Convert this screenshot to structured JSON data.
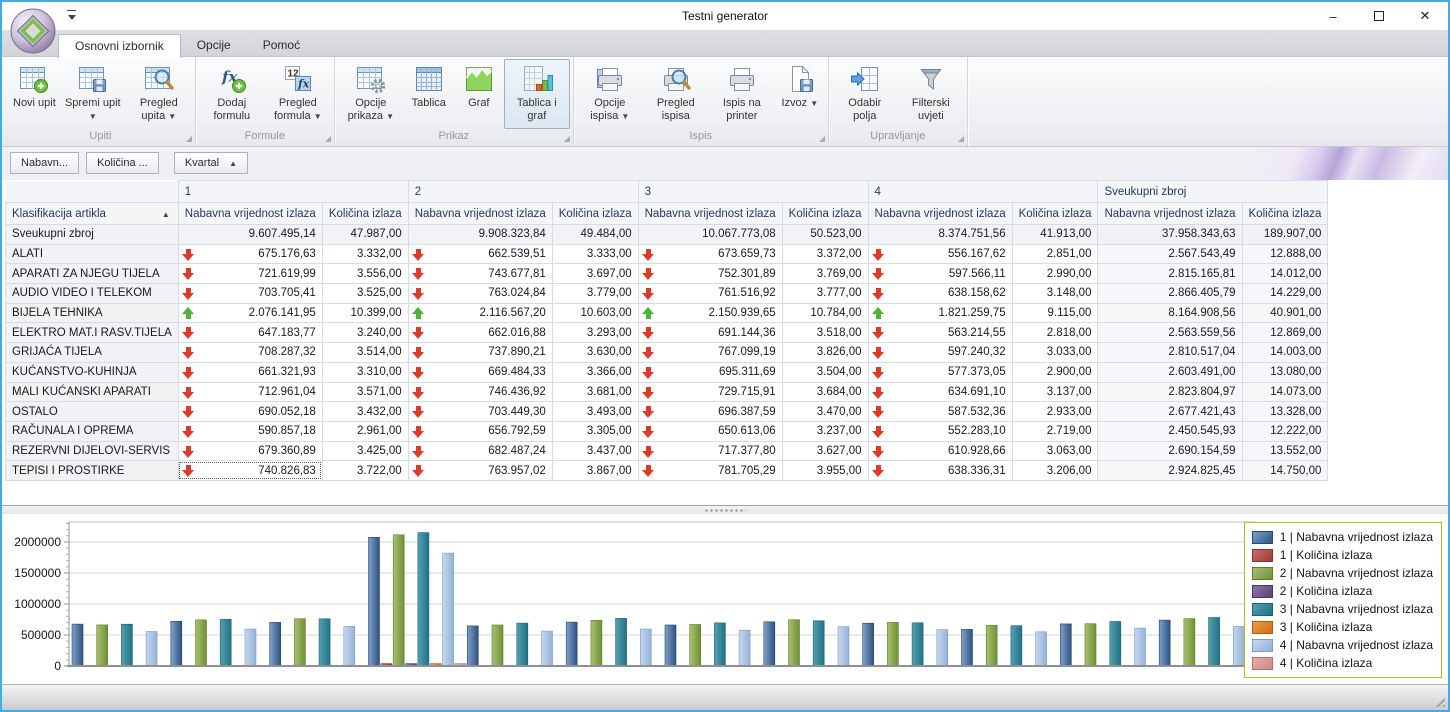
{
  "window": {
    "title": "Testni generator",
    "controls": {
      "minimize": "–",
      "close": "✕"
    }
  },
  "ribbon": {
    "tabs": [
      {
        "label": "Osnovni izbornik",
        "active": true
      },
      {
        "label": "Opcije",
        "active": false
      },
      {
        "label": "Pomoć",
        "active": false
      }
    ],
    "groups": [
      {
        "label": "Upiti",
        "buttons": [
          {
            "label": "Novi upit",
            "icon": "table-new-icon",
            "dropdown": false,
            "selected": false
          },
          {
            "label": "Spremi upit",
            "icon": "table-save-icon",
            "dropdown": true,
            "selected": false
          },
          {
            "label": "Pregled upita",
            "icon": "table-search-icon",
            "dropdown": true,
            "selected": false
          }
        ]
      },
      {
        "label": "Formule",
        "buttons": [
          {
            "label": "Dodaj formulu",
            "icon": "formula-add-icon",
            "dropdown": false,
            "selected": false
          },
          {
            "label": "Pregled formula",
            "icon": "formula-preview-icon",
            "dropdown": true,
            "selected": false
          }
        ]
      },
      {
        "label": "Prikaz",
        "buttons": [
          {
            "label": "Opcije prikaza",
            "icon": "table-options-icon",
            "dropdown": true,
            "selected": false
          },
          {
            "label": "Tablica",
            "icon": "table-icon",
            "dropdown": false,
            "selected": false
          },
          {
            "label": "Graf",
            "icon": "chart-icon",
            "dropdown": false,
            "selected": false
          },
          {
            "label": "Tablica i graf",
            "icon": "table-chart-icon",
            "dropdown": false,
            "selected": true
          }
        ]
      },
      {
        "label": "Ispis",
        "buttons": [
          {
            "label": "Opcije ispisa",
            "icon": "print-options-icon",
            "dropdown": true,
            "selected": false
          },
          {
            "label": "Pregled ispisa",
            "icon": "print-preview-icon",
            "dropdown": false,
            "selected": false
          },
          {
            "label": "Ispis na printer",
            "icon": "print-icon",
            "dropdown": false,
            "selected": false
          },
          {
            "label": "Izvoz",
            "icon": "export-icon",
            "dropdown": true,
            "selected": false
          }
        ]
      },
      {
        "label": "Upravljanje",
        "buttons": [
          {
            "label": "Odabir polja",
            "icon": "field-chooser-icon",
            "dropdown": false,
            "selected": false
          },
          {
            "label": "Filterski uvjeti",
            "icon": "filter-icon",
            "dropdown": false,
            "selected": false
          }
        ]
      }
    ]
  },
  "pivot": {
    "data_fields": [
      "Nabavn...",
      "Količina ..."
    ],
    "column_field": {
      "label": "Kvartal",
      "sort": "▲"
    },
    "row_field": {
      "label": "Klasifikacija artikla",
      "sort": "▲"
    },
    "column_groups": [
      "1",
      "2",
      "3",
      "4",
      "Sveukupni zbroj"
    ],
    "measure_headers": [
      "Nabavna vrijednost izlaza",
      "Količina izlaza"
    ],
    "rows": [
      {
        "label": "Sveukupni zbroj",
        "total": true,
        "trend": null,
        "cells": [
          "9.607.495,14",
          "47.987,00",
          "9.908.323,84",
          "49.484,00",
          "10.067.773,08",
          "50.523,00",
          "8.374.751,56",
          "41.913,00",
          "37.958.343,63",
          "189.907,00"
        ]
      },
      {
        "label": "ALATI",
        "total": false,
        "trend": "down",
        "cells": [
          "675.176,63",
          "3.332,00",
          "662.539,51",
          "3.333,00",
          "673.659,73",
          "3.372,00",
          "556.167,62",
          "2.851,00",
          "2.567.543,49",
          "12.888,00"
        ]
      },
      {
        "label": "APARATI ZA NJEGU TIJELA",
        "total": false,
        "trend": "down",
        "cells": [
          "721.619,99",
          "3.556,00",
          "743.677,81",
          "3.697,00",
          "752.301,89",
          "3.769,00",
          "597.566,11",
          "2.990,00",
          "2.815.165,81",
          "14.012,00"
        ]
      },
      {
        "label": "AUDIO VIDEO I TELEKOM",
        "total": false,
        "trend": "down",
        "cells": [
          "703.705,41",
          "3.525,00",
          "763.024,84",
          "3.779,00",
          "761.516,92",
          "3.777,00",
          "638.158,62",
          "3.148,00",
          "2.866.405,79",
          "14.229,00"
        ]
      },
      {
        "label": "BIJELA TEHNIKA",
        "total": false,
        "trend": "up",
        "cells": [
          "2.076.141,95",
          "10.399,00",
          "2.116.567,20",
          "10.603,00",
          "2.150.939,65",
          "10.784,00",
          "1.821.259,75",
          "9.115,00",
          "8.164.908,56",
          "40.901,00"
        ]
      },
      {
        "label": "ELEKTRO MAT.I RASV.TIJELA",
        "total": false,
        "trend": "down",
        "cells": [
          "647.183,77",
          "3.240,00",
          "662.016,88",
          "3.293,00",
          "691.144,36",
          "3.518,00",
          "563.214,55",
          "2.818,00",
          "2.563.559,56",
          "12.869,00"
        ]
      },
      {
        "label": "GRIJAĆA TIJELA",
        "total": false,
        "trend": "down",
        "cells": [
          "708.287,32",
          "3.514,00",
          "737.890,21",
          "3.630,00",
          "767.099,19",
          "3.826,00",
          "597.240,32",
          "3.033,00",
          "2.810.517,04",
          "14.003,00"
        ]
      },
      {
        "label": "KUĆANSTVO-KUHINJA",
        "total": false,
        "trend": "down",
        "cells": [
          "661.321,93",
          "3.310,00",
          "669.484,33",
          "3.366,00",
          "695.311,69",
          "3.504,00",
          "577.373,05",
          "2.900,00",
          "2.603.491,00",
          "13.080,00"
        ]
      },
      {
        "label": "MALI KUĆANSKI APARATI",
        "total": false,
        "trend": "down",
        "cells": [
          "712.961,04",
          "3.571,00",
          "746.436,92",
          "3.681,00",
          "729.715,91",
          "3.684,00",
          "634.691,10",
          "3.137,00",
          "2.823.804,97",
          "14.073,00"
        ]
      },
      {
        "label": "OSTALO",
        "total": false,
        "trend": "down",
        "cells": [
          "690.052,18",
          "3.432,00",
          "703.449,30",
          "3.493,00",
          "696.387,59",
          "3.470,00",
          "587.532,36",
          "2.933,00",
          "2.677.421,43",
          "13.328,00"
        ]
      },
      {
        "label": "RAČUNALA I OPREMA",
        "total": false,
        "trend": "down",
        "cells": [
          "590.857,18",
          "2.961,00",
          "656.792,59",
          "3.305,00",
          "650.613,06",
          "3.237,00",
          "552.283,10",
          "2.719,00",
          "2.450.545,93",
          "12.222,00"
        ]
      },
      {
        "label": "REZERVNI DIJELOVI-SERVIS",
        "total": false,
        "trend": "down",
        "cells": [
          "679.360,89",
          "3.425,00",
          "682.487,24",
          "3.437,00",
          "717.377,80",
          "3.627,00",
          "610.928,66",
          "3.063,00",
          "2.690.154,59",
          "13.552,00"
        ]
      },
      {
        "label": "TEPISI I PROSTIRKE",
        "total": false,
        "trend": "down",
        "cells": [
          "740.826,83",
          "3.722,00",
          "763.957,02",
          "3.867,00",
          "781.705,29",
          "3.955,00",
          "638.336,31",
          "3.206,00",
          "2.924.825,45",
          "14.750,00"
        ]
      }
    ],
    "focused_cell": {
      "row": 12,
      "col": 0
    }
  },
  "chart_data": {
    "type": "bar",
    "title": "",
    "xlabel": "",
    "ylabel": "",
    "ylim": [
      0,
      2350000
    ],
    "y_ticks": [
      0,
      500000,
      1000000,
      1500000,
      2000000
    ],
    "grid": true,
    "legend_position": "right",
    "categories": [
      "ALATI",
      "APARATI ZA NJEGU TIJELA",
      "AUDIO VIDEO I TELEKOM",
      "BIJELA TEHNIKA",
      "ELEKTRO MAT.I RASV.TIJELA",
      "GRIJAĆA TIJELA",
      "KUĆANSTVO-KUHINJA",
      "MALI KUĆANSKI APARATI",
      "OSTALO",
      "RAČUNALA I OPREMA",
      "REZERVNI DIJELOVI-SERVIS",
      "TEPISI I PROSTIRKE"
    ],
    "series": [
      {
        "name": "1 | Nabavna vrijednost izlaza",
        "color_light": "#7FA1C9",
        "color_dark": "#2E5380",
        "color_border": "#27486F",
        "values": [
          675176.63,
          721619.99,
          703705.41,
          2076141.95,
          647183.77,
          708287.32,
          661321.93,
          712961.04,
          690052.18,
          590857.18,
          679360.89,
          740826.83
        ]
      },
      {
        "name": "1 | Količina izlaza",
        "color_light": "#C76E68",
        "color_dark": "#9E3936",
        "color_border": "#8C312E",
        "values": [
          3332,
          3556,
          3525,
          10399,
          3240,
          3514,
          3310,
          3571,
          3432,
          2961,
          3425,
          3722
        ]
      },
      {
        "name": "2 | Nabavna vrijednost izlaza",
        "color_light": "#A9C170",
        "color_dark": "#6F9134",
        "color_border": "#5F7E2B",
        "values": [
          662539.51,
          743677.81,
          763024.84,
          2116567.2,
          662016.88,
          737890.21,
          669484.33,
          746436.92,
          703449.3,
          656792.59,
          682487.24,
          763957.02
        ]
      },
      {
        "name": "2 | Količina izlaza",
        "color_light": "#8C77A8",
        "color_dark": "#584272",
        "color_border": "#4B3862",
        "values": [
          3333,
          3697,
          3779,
          10603,
          3293,
          3630,
          3366,
          3681,
          3493,
          3305,
          3437,
          3867
        ]
      },
      {
        "name": "3 | Nabavna vrijednost izlaza",
        "color_light": "#55A0B0",
        "color_dark": "#1E7386",
        "color_border": "#196273",
        "values": [
          673659.73,
          752301.89,
          761516.92,
          2150939.65,
          691144.36,
          767099.19,
          695311.69,
          729715.91,
          696387.59,
          650613.06,
          717377.8,
          781705.29
        ]
      },
      {
        "name": "3 | Količina izlaza",
        "color_light": "#E99C50",
        "color_dark": "#D26E0F",
        "color_border": "#B55E0B",
        "values": [
          3372,
          3769,
          3777,
          10784,
          3518,
          3826,
          3504,
          3684,
          3470,
          3237,
          3627,
          3955
        ]
      },
      {
        "name": "4 | Nabavna vrijednost izlaza",
        "color_light": "#C6D7EE",
        "color_dark": "#94B2D9",
        "color_border": "#7E9CC4",
        "values": [
          556167.62,
          597566.11,
          638158.62,
          1821259.75,
          563214.55,
          597240.32,
          577373.05,
          634691.1,
          587532.36,
          552283.1,
          610928.66,
          638336.31
        ]
      },
      {
        "name": "4 | Količina izlaza",
        "color_light": "#E6ACA8",
        "color_dark": "#D18985",
        "color_border": "#B86F6B",
        "values": [
          2851,
          2990,
          3148,
          9115,
          2818,
          3033,
          2900,
          3137,
          2933,
          2719,
          3063,
          3206
        ]
      }
    ]
  }
}
